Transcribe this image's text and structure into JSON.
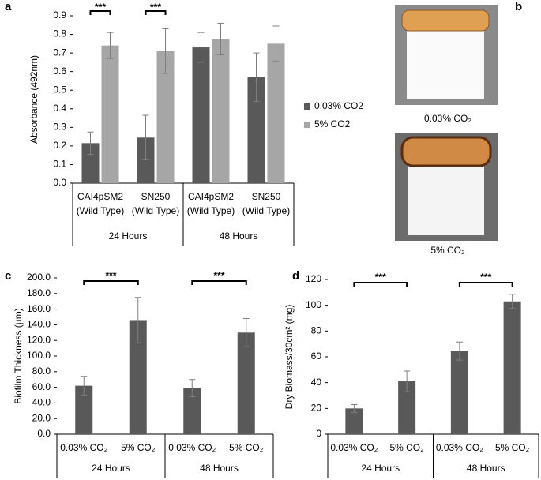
{
  "chart_data": [
    {
      "type": "bar",
      "panel_label": "a",
      "y_label": "Absorbance (492nm)",
      "groups": [
        {
          "name": "24 Hours",
          "categories": [
            [
              "CAI4pSM2",
              "(Wild Type)"
            ],
            [
              "SN250",
              "(Wild Type)"
            ]
          ]
        },
        {
          "name": "48 Hours",
          "categories": [
            [
              "CAI4pSM2",
              "(Wild Type)"
            ],
            [
              "SN250",
              "(Wild Type)"
            ]
          ]
        }
      ],
      "series": [
        {
          "name": "0.03% CO2",
          "color": "#595959",
          "values": [
            0.215,
            0.245,
            0.73,
            0.57
          ],
          "errors": [
            0.06,
            0.12,
            0.08,
            0.13
          ]
        },
        {
          "name": "5% CO2",
          "color": "#a6a6a6",
          "values": [
            0.74,
            0.71,
            0.775,
            0.75
          ],
          "errors": [
            0.07,
            0.12,
            0.085,
            0.095
          ]
        }
      ],
      "significance": [
        "***",
        "***",
        null,
        null
      ],
      "ylim": [
        0,
        0.9
      ],
      "yticks": [
        {
          "value": 0,
          "label": "0.0"
        },
        0.1,
        0.2,
        0.3,
        0.4,
        0.5,
        0.6,
        0.7,
        0.8,
        0.9
      ],
      "legend": "right"
    },
    {
      "type": "bar",
      "panel_label": "c",
      "y_label": "Biofilm Thickness (µm)",
      "groups": [
        {
          "name": "24 Hours",
          "categories": [
            [
              "0.03% CO₂"
            ],
            [
              "5% CO₂"
            ]
          ]
        },
        {
          "name": "48 Hours",
          "categories": [
            [
              "0.03% CO₂"
            ],
            [
              "5% CO₂"
            ]
          ]
        }
      ],
      "series": [
        {
          "color": "#595959",
          "values": [
            62,
            146,
            59,
            130
          ],
          "errors": [
            12,
            29,
            11,
            18
          ]
        }
      ],
      "group_significance": [
        "***",
        "***"
      ],
      "ylim": [
        0,
        200
      ],
      "yticks": [
        {
          "value": 0,
          "label": "0.0"
        },
        {
          "value": 20,
          "label": "20.0"
        },
        {
          "value": 40,
          "label": "40.0"
        },
        {
          "value": 60,
          "label": "60.0"
        },
        {
          "value": 80,
          "label": "80.0"
        },
        {
          "value": 100,
          "label": "100.0"
        },
        {
          "value": 120,
          "label": "120.0"
        },
        {
          "value": 140,
          "label": "140.0"
        },
        {
          "value": 160,
          "label": "160.0"
        },
        {
          "value": 180,
          "label": "180.0"
        },
        {
          "value": 200,
          "label": "200.0"
        }
      ]
    },
    {
      "type": "bar",
      "panel_label": "d",
      "y_label": "Dry Biomass/30cm² (mg)",
      "groups": [
        {
          "name": "24 Hours",
          "categories": [
            [
              "0.03% CO₂"
            ],
            [
              "5% CO₂"
            ]
          ]
        },
        {
          "name": "48 Hours",
          "categories": [
            [
              "0.03% CO₂"
            ],
            [
              "5% CO₂"
            ]
          ]
        }
      ],
      "series": [
        {
          "color": "#595959",
          "values": [
            20,
            41,
            64.5,
            103
          ],
          "errors": [
            3,
            8,
            7,
            5.5
          ]
        }
      ],
      "group_significance": [
        "***",
        "***"
      ],
      "ylim": [
        0,
        120
      ],
      "yticks": [
        0,
        20,
        40,
        60,
        80,
        100,
        120
      ]
    }
  ],
  "photo_panel": {
    "label": "b",
    "captions": [
      "0.03% CO₂",
      "5% CO₂"
    ]
  }
}
